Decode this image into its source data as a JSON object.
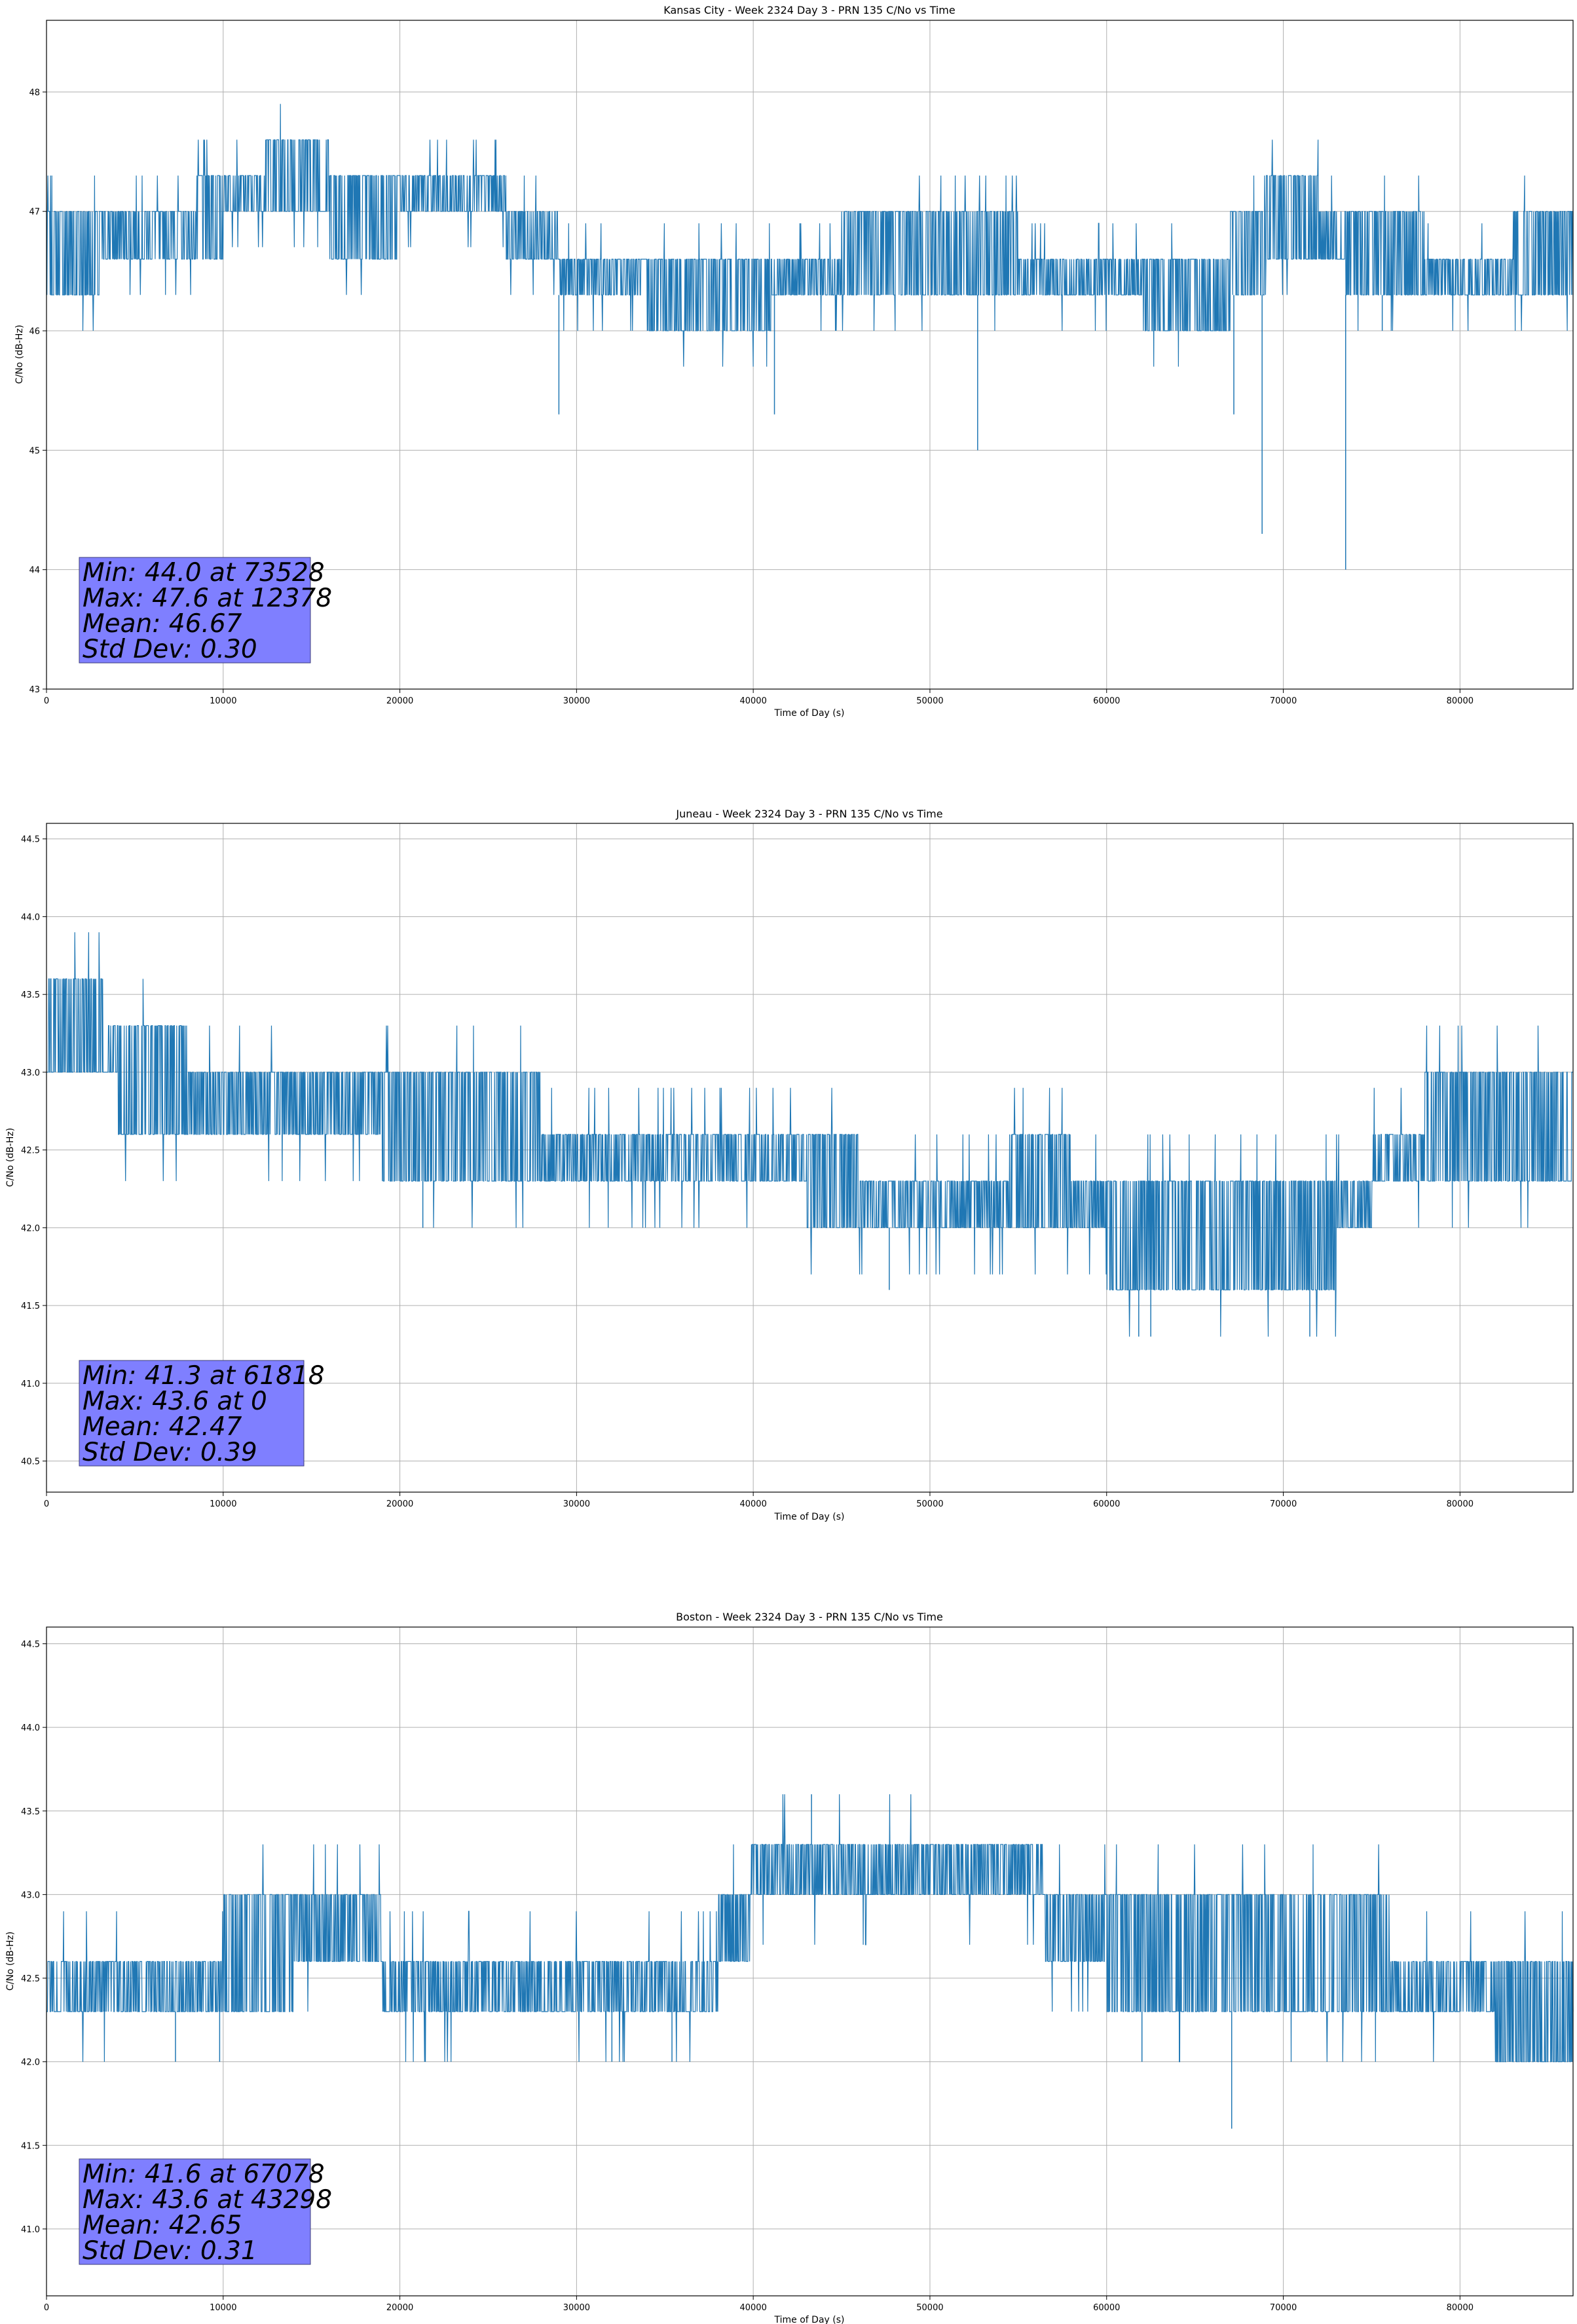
{
  "colors": {
    "series": "#1f77b4",
    "grid": "#b0b0b0",
    "stats_box": "#7f7fff",
    "axis": "#000000"
  },
  "chart_data": [
    {
      "type": "line",
      "title": "Kansas City - Week 2324 Day 3 - PRN 135 C/No vs Time",
      "xlabel": "Time of Day (s)",
      "ylabel": "C/No (dB-Hz)",
      "xlim": [
        0,
        86400
      ],
      "ylim": [
        43,
        48.6
      ],
      "xticks": [
        0,
        10000,
        20000,
        30000,
        40000,
        50000,
        60000,
        70000,
        80000
      ],
      "yticks": [
        43,
        44,
        45,
        46,
        47,
        48
      ],
      "ytick_decimals": 0,
      "grid": true,
      "series": [
        {
          "band": [
            [
              0,
              46.3,
              47.0
            ],
            [
              3000,
              46.6,
              47.0
            ],
            [
              8500,
              46.6,
              47.3
            ],
            [
              9800,
              46.6,
              47.3
            ],
            [
              10000,
              47.0,
              47.3
            ],
            [
              12378,
              47.0,
              47.6
            ],
            [
              16000,
              46.6,
              47.3
            ],
            [
              20000,
              47.0,
              47.3
            ],
            [
              26000,
              46.6,
              47.0
            ],
            [
              28500,
              46.6,
              47.0
            ],
            [
              29000,
              46.3,
              46.6
            ],
            [
              34000,
              46.0,
              46.6
            ],
            [
              41000,
              46.3,
              46.6
            ],
            [
              45000,
              46.3,
              47.0
            ],
            [
              55000,
              46.3,
              46.6
            ],
            [
              62000,
              46.0,
              46.6
            ],
            [
              67000,
              46.3,
              47.0
            ],
            [
              69000,
              46.6,
              47.3
            ],
            [
              72000,
              46.6,
              47.0
            ],
            [
              73500,
              46.3,
              47.0
            ],
            [
              78000,
              46.3,
              46.6
            ],
            [
              83000,
              46.3,
              47.0
            ],
            [
              86400,
              46.6,
              47.0
            ]
          ],
          "dips": [
            [
              29000,
              45.3
            ],
            [
              41200,
              45.3
            ],
            [
              52700,
              45.0
            ],
            [
              67200,
              45.3
            ],
            [
              68800,
              44.3
            ],
            [
              73528,
              44.0
            ],
            [
              75600,
              46.0
            ]
          ]
        }
      ],
      "stats": [
        "Min: 44.0 at 73528",
        "Max: 47.6 at 12378",
        "Mean: 46.67",
        "Std Dev: 0.30"
      ]
    },
    {
      "type": "line",
      "title": "Juneau - Week 2324 Day 3 - PRN 135 C/No vs Time",
      "xlabel": "Time of Day (s)",
      "ylabel": "C/No (dB-Hz)",
      "xlim": [
        0,
        86400
      ],
      "ylim": [
        40.3,
        44.6
      ],
      "xticks": [
        0,
        10000,
        20000,
        30000,
        40000,
        50000,
        60000,
        70000,
        80000
      ],
      "yticks": [
        40.5,
        41.0,
        41.5,
        42.0,
        42.5,
        43.0,
        43.5,
        44.0,
        44.5
      ],
      "ytick_decimals": 1,
      "grid": true,
      "series": [
        {
          "band": [
            [
              0,
              43.0,
              43.6
            ],
            [
              3200,
              43.0,
              43.3
            ],
            [
              4000,
              42.6,
              43.3
            ],
            [
              8000,
              42.6,
              43.0
            ],
            [
              12000,
              42.6,
              43.0
            ],
            [
              19000,
              42.3,
              43.0
            ],
            [
              28000,
              42.3,
              42.6
            ],
            [
              38000,
              42.3,
              42.6
            ],
            [
              43000,
              42.0,
              42.6
            ],
            [
              46000,
              42.0,
              42.3
            ],
            [
              54500,
              42.0,
              42.6
            ],
            [
              58000,
              42.0,
              42.3
            ],
            [
              60000,
              41.6,
              42.3
            ],
            [
              64000,
              41.6,
              42.3
            ],
            [
              67000,
              41.6,
              42.3
            ],
            [
              73000,
              42.0,
              42.3
            ],
            [
              75000,
              42.3,
              42.6
            ],
            [
              78000,
              42.3,
              43.0
            ],
            [
              86400,
              42.3,
              43.0
            ]
          ],
          "dips": [
            [
              21300,
              42.0
            ],
            [
              47700,
              41.6
            ],
            [
              61818,
              41.3
            ],
            [
              62500,
              41.3
            ],
            [
              71500,
              41.3
            ]
          ]
        }
      ],
      "stats": [
        "Min: 41.3 at 61818",
        "Max: 43.6 at 0",
        "Mean: 42.47",
        "Std Dev: 0.39"
      ]
    },
    {
      "type": "line",
      "title": "Boston - Week 2324 Day 3 - PRN 135 C/No vs Time",
      "xlabel": "Time of Day (s)",
      "ylabel": "C/No (dB-Hz)",
      "xlim": [
        0,
        86400
      ],
      "ylim": [
        40.6,
        44.6
      ],
      "xticks": [
        0,
        10000,
        20000,
        30000,
        40000,
        50000,
        60000,
        70000,
        80000
      ],
      "yticks": [
        41.0,
        41.5,
        42.0,
        42.5,
        43.0,
        43.5,
        44.0,
        44.5
      ],
      "ytick_decimals": 1,
      "grid": true,
      "series": [
        {
          "band": [
            [
              0,
              42.3,
              42.6
            ],
            [
              8500,
              42.3,
              42.6
            ],
            [
              10000,
              42.3,
              43.0
            ],
            [
              14000,
              42.6,
              43.0
            ],
            [
              19000,
              42.3,
              42.6
            ],
            [
              33500,
              42.3,
              42.6
            ],
            [
              38000,
              42.6,
              43.0
            ],
            [
              39800,
              43.0,
              43.3
            ],
            [
              43000,
              43.0,
              43.3
            ],
            [
              50000,
              43.0,
              43.3
            ],
            [
              56500,
              42.6,
              43.0
            ],
            [
              60000,
              42.3,
              43.0
            ],
            [
              66000,
              42.3,
              43.0
            ],
            [
              76000,
              42.3,
              42.6
            ],
            [
              82000,
              42.0,
              42.6
            ],
            [
              86400,
              42.0,
              42.3
            ]
          ],
          "dips": [
            [
              7300,
              42.0
            ],
            [
              9800,
              42.0
            ],
            [
              32000,
              42.0
            ],
            [
              35400,
              42.0
            ],
            [
              43298,
              43.6
            ],
            [
              62000,
              42.0
            ],
            [
              67078,
              41.6
            ]
          ]
        }
      ],
      "stats": [
        "Min: 41.6 at 67078",
        "Max: 43.6 at 43298",
        "Mean: 42.65",
        "Std Dev: 0.31"
      ]
    }
  ]
}
